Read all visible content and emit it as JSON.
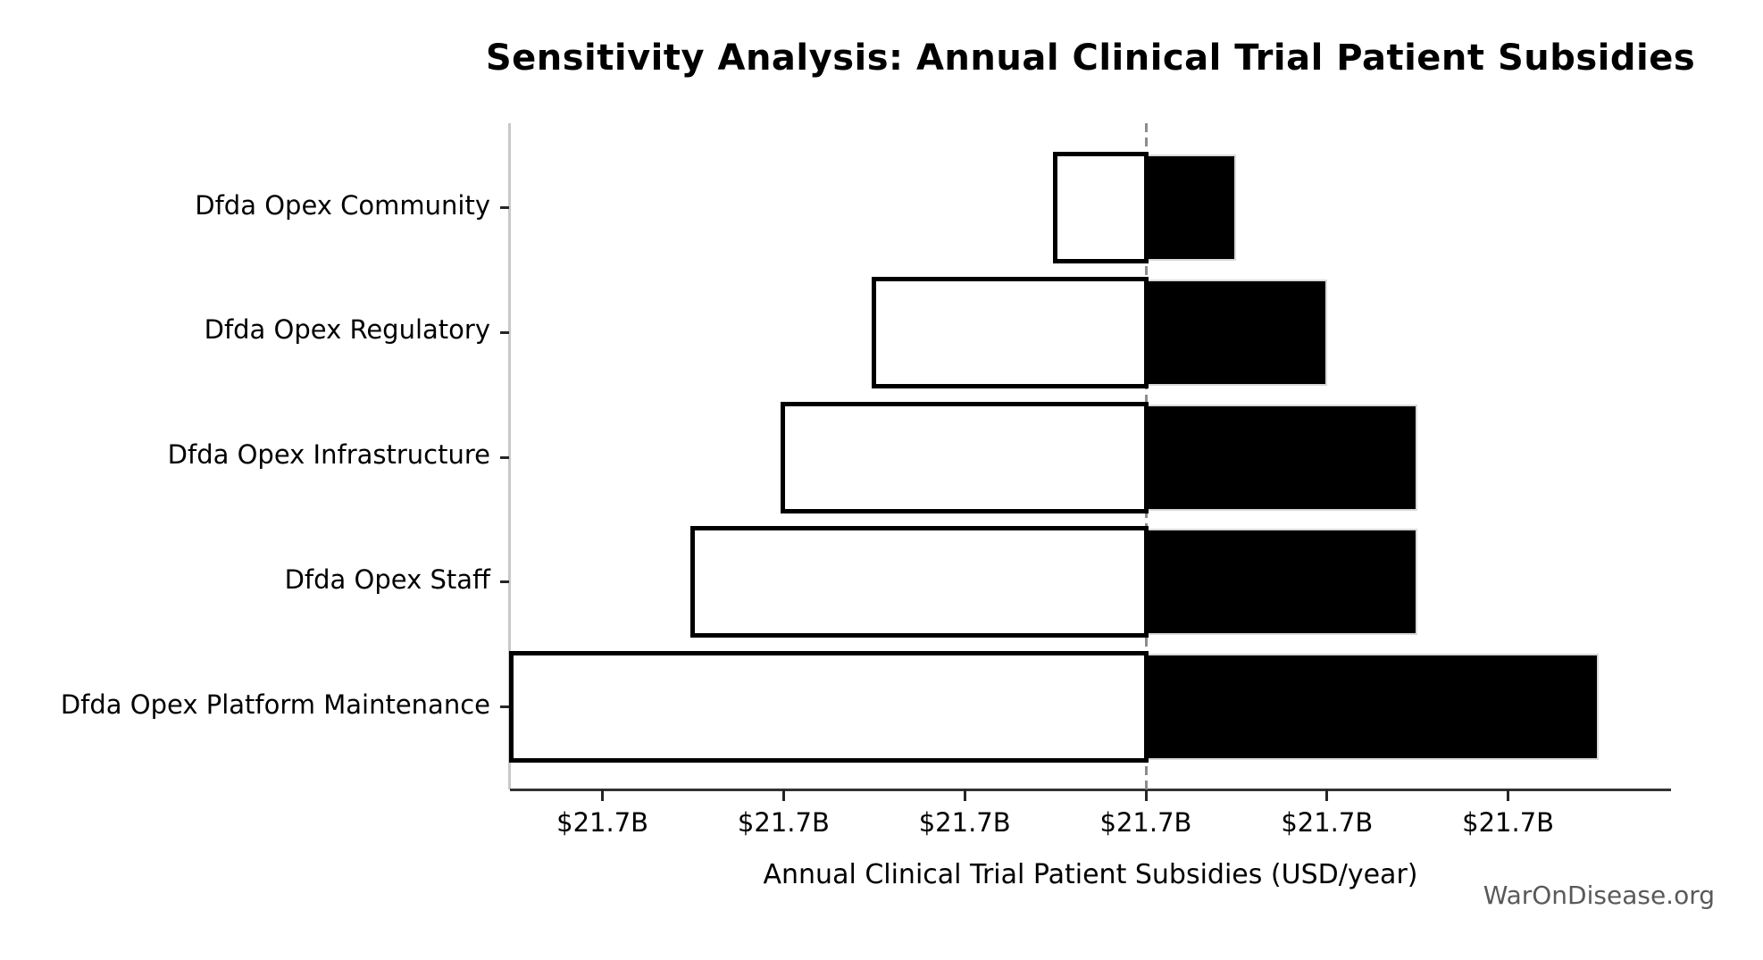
{
  "watermark": "WarOnDisease.org",
  "chart_data": {
    "type": "bar",
    "subtype": "tornado-sensitivity",
    "title": "Sensitivity Analysis: Annual Clinical Trial Patient Subsidies",
    "xlabel": "Annual Clinical Trial Patient Subsidies (USD/year)",
    "ylabel": "",
    "orientation": "horizontal",
    "grid": false,
    "legend": null,
    "baseline_value_label": "$21.7B",
    "x_tick_labels": [
      "$21.7B",
      "$21.7B",
      "$21.7B",
      "$21.7B",
      "$21.7B",
      "$21.7B"
    ],
    "center_tick_index": 3,
    "center_line": {
      "style": "dashed",
      "color": "#8c8c8c"
    },
    "categories": [
      "Dfda Opex Community",
      "Dfda Opex Regulatory",
      "Dfda Opex Infrastructure",
      "Dfda Opex Staff",
      "Dfda Opex Platform Maintenance"
    ],
    "rows": [
      {
        "category": "Dfda Opex Community",
        "low_extent_ticks": 0.5,
        "high_extent_ticks": 0.5
      },
      {
        "category": "Dfda Opex Regulatory",
        "low_extent_ticks": 1.5,
        "high_extent_ticks": 1.0
      },
      {
        "category": "Dfda Opex Infrastructure",
        "low_extent_ticks": 2.0,
        "high_extent_ticks": 1.5
      },
      {
        "category": "Dfda Opex Staff",
        "low_extent_ticks": 2.5,
        "high_extent_ticks": 1.5
      },
      {
        "category": "Dfda Opex Platform Maintenance",
        "low_extent_ticks": 3.5,
        "high_extent_ticks": 2.5
      }
    ],
    "colors": {
      "low_fill": "#ffffff",
      "low_edge": "#000000",
      "high_fill": "#000000",
      "high_edge": "#d9d9d9"
    },
    "note": "All x tick labels display the same rounded value $21.7B"
  }
}
